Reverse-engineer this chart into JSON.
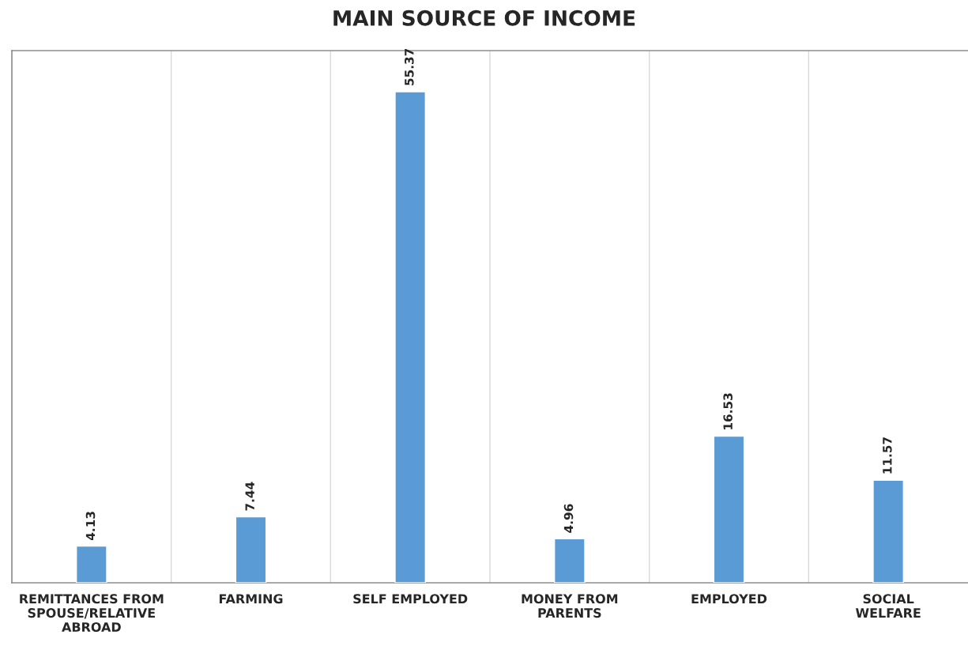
{
  "chart_data": {
    "type": "bar",
    "title": "MAIN SOURCE OF INCOME",
    "categories": [
      "REMITTANCES FROM\nSPOUSE/RELATIVE\nABROAD",
      "FARMING",
      "SELF EMPLOYED",
      "MONEY FROM\nPARENTS",
      "EMPLOYED",
      "SOCIAL\nWELFARE"
    ],
    "values": [
      4.13,
      7.44,
      55.37,
      4.96,
      16.53,
      11.57
    ],
    "color": "#5b9bd5",
    "ylim": [
      0,
      60
    ],
    "grid": "x",
    "data_labels": true,
    "tick_labels": "x"
  }
}
